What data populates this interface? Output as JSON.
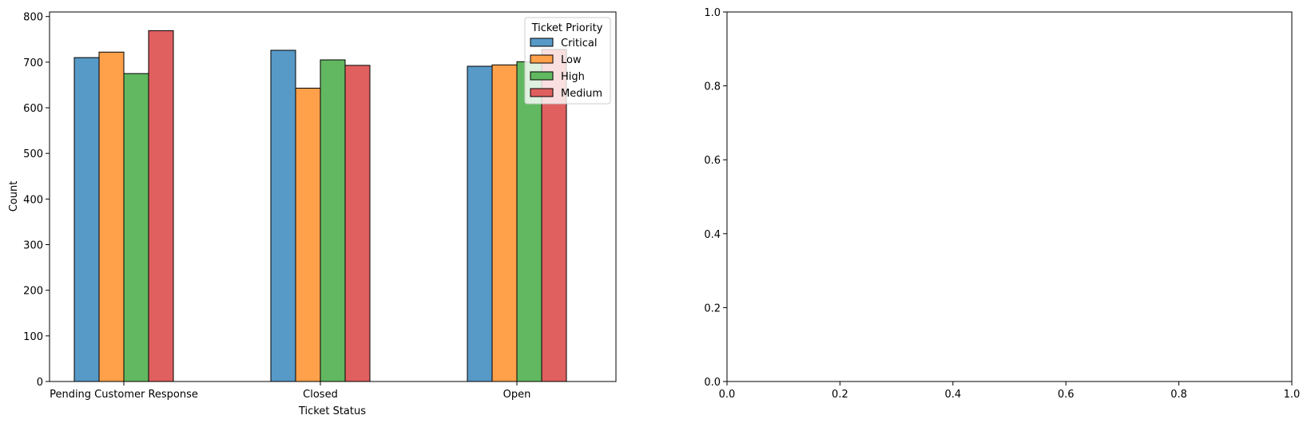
{
  "chart_data": [
    {
      "type": "bar",
      "xlabel": "Ticket Status",
      "ylabel": "Count",
      "categories": [
        "Pending Customer Response",
        "Closed",
        "Open"
      ],
      "ylim": [
        0,
        810
      ],
      "yticks": [
        "0",
        "100",
        "200",
        "300",
        "400",
        "500",
        "600",
        "700",
        "800"
      ],
      "legend": {
        "title": "Ticket Priority",
        "placement": "top-right"
      },
      "series": [
        {
          "name": "Critical",
          "color": "#5799c7",
          "values": [
            710,
            726,
            691
          ]
        },
        {
          "name": "Low",
          "color": "#ffa04a",
          "values": [
            722,
            643,
            694
          ]
        },
        {
          "name": "High",
          "color": "#62b860",
          "values": [
            675,
            705,
            701
          ]
        },
        {
          "name": "Medium",
          "color": "#e05f5f",
          "values": [
            769,
            693,
            728
          ]
        }
      ],
      "grid": false
    },
    {
      "type": "scatter",
      "xlabel": "",
      "ylabel": "",
      "series": [],
      "xlim": [
        0,
        1
      ],
      "ylim": [
        0,
        1
      ],
      "xticks": [
        "0.0",
        "0.2",
        "0.4",
        "0.6",
        "0.8",
        "1.0"
      ],
      "yticks": [
        "0.0",
        "0.2",
        "0.4",
        "0.6",
        "0.8",
        "1.0"
      ],
      "grid": false
    }
  ]
}
